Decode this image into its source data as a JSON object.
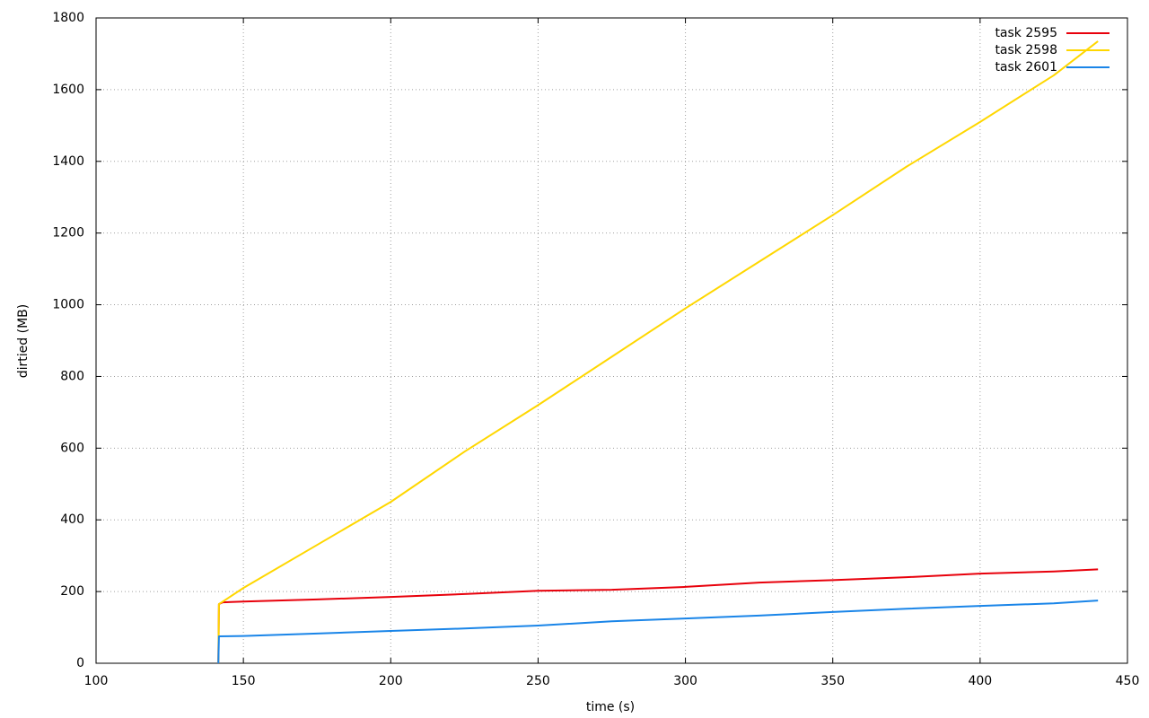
{
  "chart_data": {
    "type": "line",
    "x_label": "time (s)",
    "y_label": "dirtied (MB)",
    "xlim": [
      100,
      450
    ],
    "ylim": [
      0,
      1800
    ],
    "xticks": [
      100,
      150,
      200,
      250,
      300,
      350,
      400,
      450
    ],
    "yticks": [
      0,
      200,
      400,
      600,
      800,
      1000,
      1200,
      1400,
      1600,
      1800
    ],
    "grid": true,
    "legend": "top-right",
    "series": [
      {
        "name": "task 2595",
        "color": "#e8000b",
        "x": [
          141.5,
          141.7,
          143,
          150,
          175,
          200,
          225,
          250,
          275,
          300,
          325,
          350,
          375,
          400,
          425,
          440
        ],
        "values": [
          0,
          165,
          170,
          172,
          178,
          185,
          193,
          202,
          205,
          213,
          225,
          232,
          240,
          250,
          256,
          262
        ]
      },
      {
        "name": "task 2598",
        "color": "#ffd700",
        "x": [
          141.5,
          141.7,
          150,
          175,
          200,
          225,
          250,
          275,
          300,
          325,
          350,
          375,
          400,
          425,
          440
        ],
        "values": [
          0,
          165,
          210,
          330,
          450,
          590,
          720,
          855,
          990,
          1120,
          1250,
          1385,
          1510,
          1640,
          1735
        ]
      },
      {
        "name": "task 2601",
        "color": "#1a85e8",
        "x": [
          141.5,
          141.7,
          150,
          175,
          200,
          225,
          250,
          275,
          300,
          325,
          350,
          375,
          400,
          425,
          440
        ],
        "values": [
          0,
          75,
          76,
          83,
          90,
          97,
          105,
          117,
          125,
          133,
          143,
          152,
          160,
          167,
          175
        ]
      }
    ]
  }
}
